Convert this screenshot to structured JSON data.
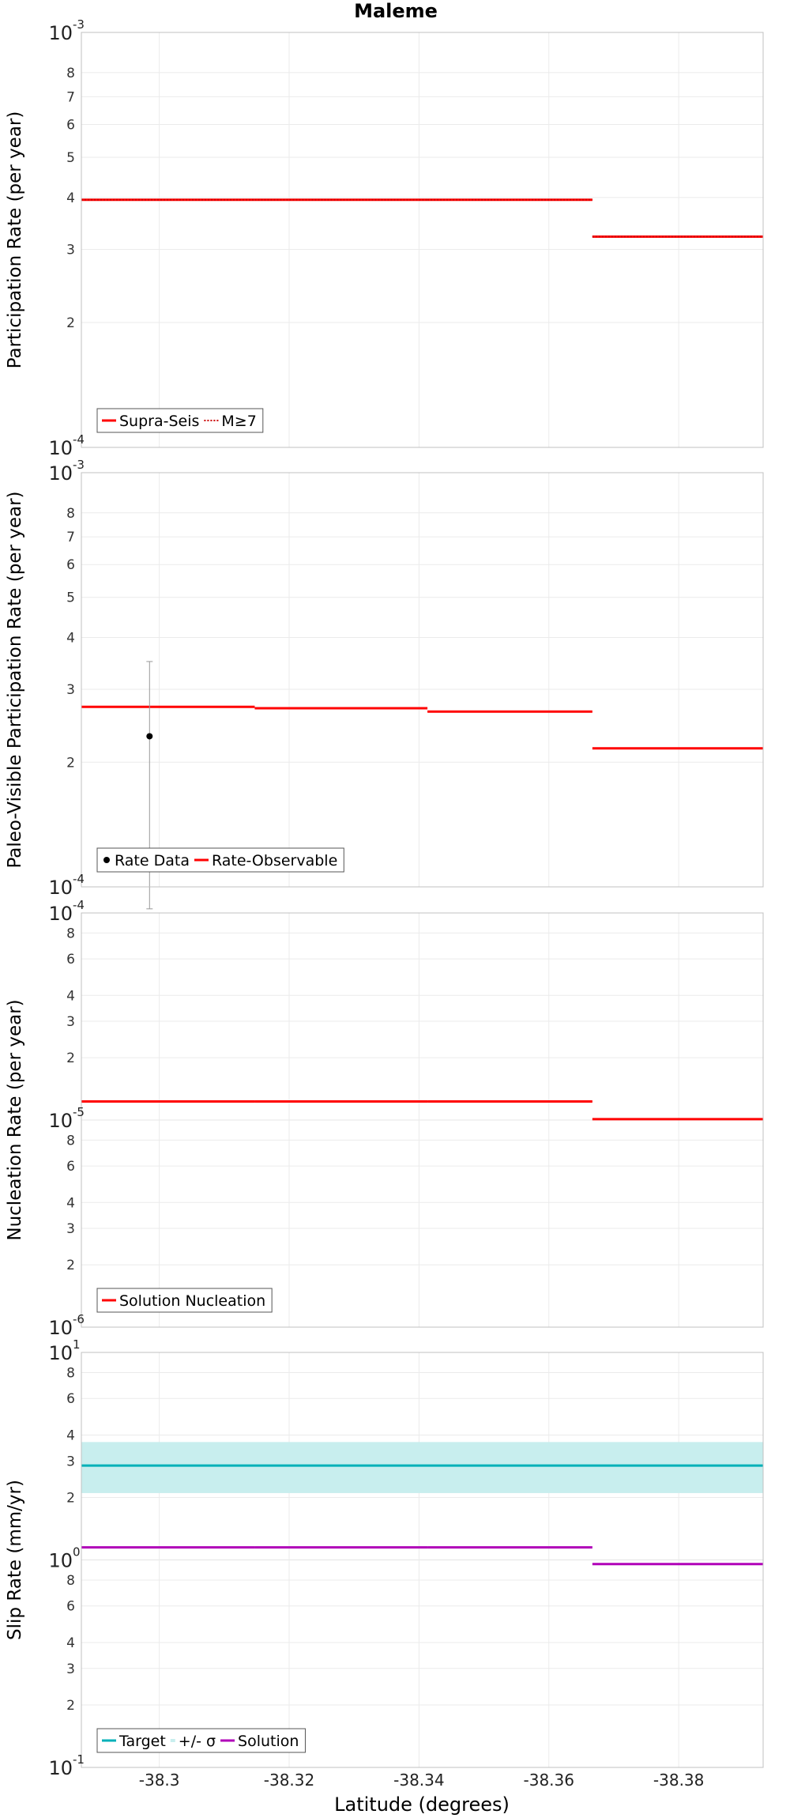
{
  "title": "Maleme",
  "xlabel": "Latitude (degrees)",
  "x_ticks": [
    -38.3,
    -38.32,
    -38.34,
    -38.36,
    -38.38
  ],
  "x_tick_labels": [
    "-38.3",
    "-38.32",
    "-38.34",
    "-38.36",
    "-38.38"
  ],
  "chart_data": [
    {
      "type": "line",
      "ylabel": "Participation Rate (per year)",
      "xlim": [
        -38.288,
        -38.393
      ],
      "ylim": [
        0.0001,
        0.001
      ],
      "y_scale": "log",
      "y_major_ticks": [
        {
          "value": 0.001,
          "mantissa": "10",
          "exponent": "-3"
        },
        {
          "value": 0.0001,
          "mantissa": "10",
          "exponent": "-4"
        }
      ],
      "y_minor_ticks": [
        {
          "value": 0.0002,
          "label": "2"
        },
        {
          "value": 0.0003,
          "label": "3"
        },
        {
          "value": 0.0004,
          "label": "4"
        },
        {
          "value": 0.0005,
          "label": "5"
        },
        {
          "value": 0.0006,
          "label": "6"
        },
        {
          "value": 0.0007,
          "label": "7"
        },
        {
          "value": 0.0008,
          "label": "8"
        }
      ],
      "grid": true,
      "legend_position": "bottom-left",
      "series": [
        {
          "name": "Supra-Seis",
          "style": "step-solid",
          "color": "#ff0000",
          "segments": [
            {
              "x0": -38.288,
              "x1": -38.3147,
              "y": 0.000395
            },
            {
              "x0": -38.3147,
              "x1": -38.3413,
              "y": 0.000395
            },
            {
              "x0": -38.3413,
              "x1": -38.3667,
              "y": 0.000395
            },
            {
              "x0": -38.3667,
              "x1": -38.393,
              "y": 0.000322
            }
          ]
        },
        {
          "name": "M≥7",
          "style": "step-dotted",
          "color": "#cc0000",
          "segments": [
            {
              "x0": -38.288,
              "x1": -38.3147,
              "y": 0.000395
            },
            {
              "x0": -38.3147,
              "x1": -38.3413,
              "y": 0.000395
            },
            {
              "x0": -38.3413,
              "x1": -38.3667,
              "y": 0.000395
            },
            {
              "x0": -38.3667,
              "x1": -38.393,
              "y": 0.000322
            }
          ]
        }
      ]
    },
    {
      "type": "line",
      "ylabel": "Paleo-Visible Participation Rate (per year)",
      "xlim": [
        -38.288,
        -38.393
      ],
      "ylim": [
        0.0001,
        0.001
      ],
      "y_scale": "log",
      "y_major_ticks": [
        {
          "value": 0.001,
          "mantissa": "10",
          "exponent": "-3"
        },
        {
          "value": 0.0001,
          "mantissa": "10",
          "exponent": "-4"
        }
      ],
      "y_minor_ticks": [
        {
          "value": 0.0002,
          "label": "2"
        },
        {
          "value": 0.0003,
          "label": "3"
        },
        {
          "value": 0.0004,
          "label": "4"
        },
        {
          "value": 0.0005,
          "label": "5"
        },
        {
          "value": 0.0006,
          "label": "6"
        },
        {
          "value": 0.0007,
          "label": "7"
        },
        {
          "value": 0.0008,
          "label": "8"
        }
      ],
      "grid": true,
      "legend_position": "bottom-left",
      "points": [
        {
          "name": "Rate Data",
          "x": -38.2985,
          "y": 0.000231,
          "err_low": 8.85e-05,
          "err_high": 0.00035,
          "color": "#000000"
        }
      ],
      "series": [
        {
          "name": "Rate-Observable",
          "style": "step-solid",
          "color": "#ff0000",
          "segments": [
            {
              "x0": -38.288,
              "x1": -38.3147,
              "y": 0.000272
            },
            {
              "x0": -38.3147,
              "x1": -38.3413,
              "y": 0.00027
            },
            {
              "x0": -38.3413,
              "x1": -38.3667,
              "y": 0.000265
            },
            {
              "x0": -38.3667,
              "x1": -38.393,
              "y": 0.000216
            }
          ]
        }
      ]
    },
    {
      "type": "line",
      "ylabel": "Nucleation Rate (per year)",
      "xlim": [
        -38.288,
        -38.393
      ],
      "ylim": [
        1e-06,
        0.0001
      ],
      "y_scale": "log",
      "y_major_ticks": [
        {
          "value": 0.0001,
          "mantissa": "10",
          "exponent": "-4"
        },
        {
          "value": 1e-05,
          "mantissa": "10",
          "exponent": "-5"
        },
        {
          "value": 1e-06,
          "mantissa": "10",
          "exponent": "-6"
        }
      ],
      "y_minor_ticks": [
        {
          "value": 2e-06,
          "label": "2"
        },
        {
          "value": 3e-06,
          "label": "3"
        },
        {
          "value": 4e-06,
          "label": "4"
        },
        {
          "value": 6e-06,
          "label": "6"
        },
        {
          "value": 8e-06,
          "label": "8"
        },
        {
          "value": 2e-05,
          "label": "2"
        },
        {
          "value": 3e-05,
          "label": "3"
        },
        {
          "value": 4e-05,
          "label": "4"
        },
        {
          "value": 6e-05,
          "label": "6"
        },
        {
          "value": 8e-05,
          "label": "8"
        }
      ],
      "grid": true,
      "legend_position": "bottom-left",
      "series": [
        {
          "name": "Solution Nucleation",
          "style": "step-solid",
          "color": "#ff0000",
          "segments": [
            {
              "x0": -38.288,
              "x1": -38.3147,
              "y": 1.23e-05
            },
            {
              "x0": -38.3147,
              "x1": -38.3413,
              "y": 1.23e-05
            },
            {
              "x0": -38.3413,
              "x1": -38.3667,
              "y": 1.23e-05
            },
            {
              "x0": -38.3667,
              "x1": -38.393,
              "y": 1.01e-05
            }
          ]
        }
      ]
    },
    {
      "type": "line",
      "ylabel": "Slip Rate (mm/yr)",
      "xlim": [
        -38.288,
        -38.393
      ],
      "ylim": [
        0.1,
        10
      ],
      "y_scale": "log",
      "y_major_ticks": [
        {
          "value": 10,
          "mantissa": "10",
          "exponent": "1"
        },
        {
          "value": 1,
          "mantissa": "10",
          "exponent": "0"
        },
        {
          "value": 0.1,
          "mantissa": "10",
          "exponent": "-1"
        }
      ],
      "y_minor_ticks": [
        {
          "value": 0.2,
          "label": "2"
        },
        {
          "value": 0.3,
          "label": "3"
        },
        {
          "value": 0.4,
          "label": "4"
        },
        {
          "value": 0.6,
          "label": "6"
        },
        {
          "value": 0.8,
          "label": "8"
        },
        {
          "value": 2,
          "label": "2"
        },
        {
          "value": 3,
          "label": "3"
        },
        {
          "value": 4,
          "label": "4"
        },
        {
          "value": 6,
          "label": "6"
        },
        {
          "value": 8,
          "label": "8"
        }
      ],
      "grid": true,
      "legend_position": "bottom-left",
      "band": {
        "name": "+/- σ",
        "y0": 2.1,
        "y1": 3.7,
        "color": "#c8eeee"
      },
      "series": [
        {
          "name": "Target",
          "style": "solid",
          "color": "#00b0b8",
          "segments": [
            {
              "x0": -38.288,
              "x1": -38.393,
              "y": 2.85
            }
          ]
        },
        {
          "name": "Solution",
          "style": "step-solid",
          "color": "#b000b8",
          "segments": [
            {
              "x0": -38.288,
              "x1": -38.3147,
              "y": 1.15
            },
            {
              "x0": -38.3147,
              "x1": -38.3413,
              "y": 1.15
            },
            {
              "x0": -38.3413,
              "x1": -38.3667,
              "y": 1.15
            },
            {
              "x0": -38.3667,
              "x1": -38.393,
              "y": 0.955
            }
          ]
        }
      ]
    }
  ]
}
